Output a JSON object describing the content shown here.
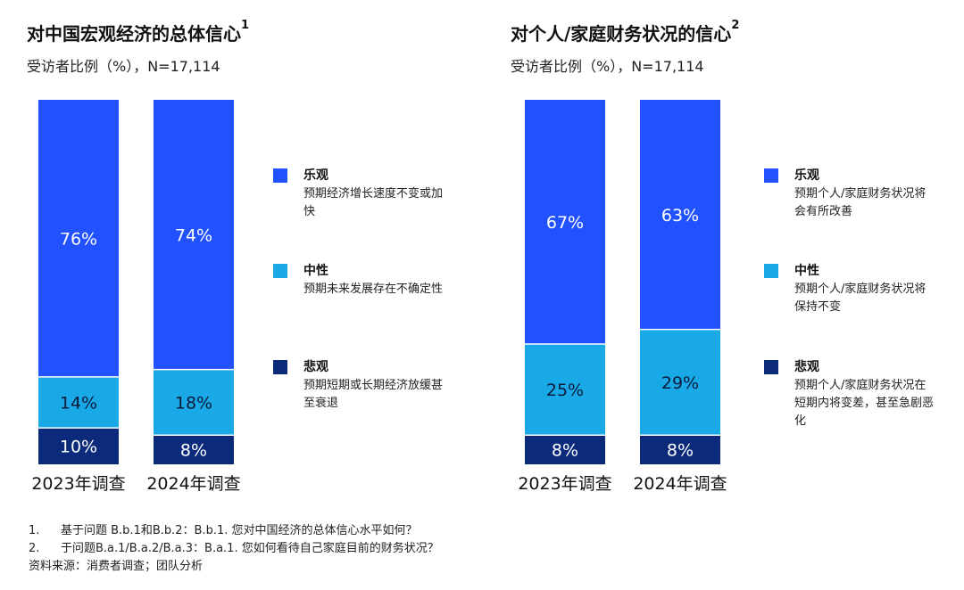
{
  "colors": {
    "optimistic": "#2251ff",
    "neutral": "#19a9e6",
    "pessimistic": "#0b2a7a",
    "bar_text_light": "#ffffff",
    "bar_text_dark": "#0a1a3a"
  },
  "charts": [
    {
      "title": "对中国宏观经济的总体信心",
      "title_sup": "1",
      "subtitle": "受访者比例（%），N=17,114",
      "legend": [
        {
          "key": "optimistic",
          "name": "乐观",
          "desc": "预期经济增长速度不变或加快"
        },
        {
          "key": "neutral",
          "name": "中性",
          "desc": "预期未来发展存在不确定性"
        },
        {
          "key": "pessimistic",
          "name": "悲观",
          "desc": "预期短期或长期经济放缓甚至衰退"
        }
      ]
    },
    {
      "title": "对个人/家庭财务状况的信心",
      "title_sup": "2",
      "subtitle": "受访者比例（%），N=17,114",
      "legend": [
        {
          "key": "optimistic",
          "name": "乐观",
          "desc": "预期个人/家庭财务状况将会有所改善"
        },
        {
          "key": "neutral",
          "name": "中性",
          "desc": "预期个人/家庭财务状况将保持不变"
        },
        {
          "key": "pessimistic",
          "name": "悲观",
          "desc": "预期个人/家庭财务状况在短期内将变差，甚至急剧恶化"
        }
      ]
    }
  ],
  "chart_data": [
    {
      "type": "bar",
      "stacked": true,
      "categories": [
        "2023年调查",
        "2024年调查"
      ],
      "series": [
        {
          "name": "悲观",
          "key": "pessimistic",
          "values": [
            10,
            8
          ],
          "labels": [
            "10%",
            "8%"
          ]
        },
        {
          "name": "中性",
          "key": "neutral",
          "values": [
            14,
            18
          ],
          "labels": [
            "14%",
            "18%"
          ]
        },
        {
          "name": "乐观",
          "key": "optimistic",
          "values": [
            76,
            74
          ],
          "labels": [
            "76%",
            "74%"
          ]
        }
      ],
      "title": "对中国宏观经济的总体信心",
      "ylim": [
        0,
        100
      ],
      "grid": false,
      "legend_position": "right"
    },
    {
      "type": "bar",
      "stacked": true,
      "categories": [
        "2023年调查",
        "2024年调查"
      ],
      "series": [
        {
          "name": "悲观",
          "key": "pessimistic",
          "values": [
            8,
            8
          ],
          "labels": [
            "8%",
            "8%"
          ]
        },
        {
          "name": "中性",
          "key": "neutral",
          "values": [
            25,
            29
          ],
          "labels": [
            "25%",
            "29%"
          ]
        },
        {
          "name": "乐观",
          "key": "optimistic",
          "values": [
            67,
            63
          ],
          "labels": [
            "67%",
            "63%"
          ]
        }
      ],
      "title": "对个人/家庭财务状况的信心",
      "ylim": [
        0,
        100
      ],
      "grid": false,
      "legend_position": "right"
    }
  ],
  "footnotes": [
    {
      "num": "1.",
      "text": "基于问题 B.b.1和B.b.2：B.b.1. 您对中国经济的总体信心水平如何？"
    },
    {
      "num": "2.",
      "text": "于问题B.a.1/B.a.2/B.a.3：B.a.1. 您如何看待自己家庭目前的财务状况？"
    }
  ],
  "source": "资料来源：消费者调查；团队分析"
}
